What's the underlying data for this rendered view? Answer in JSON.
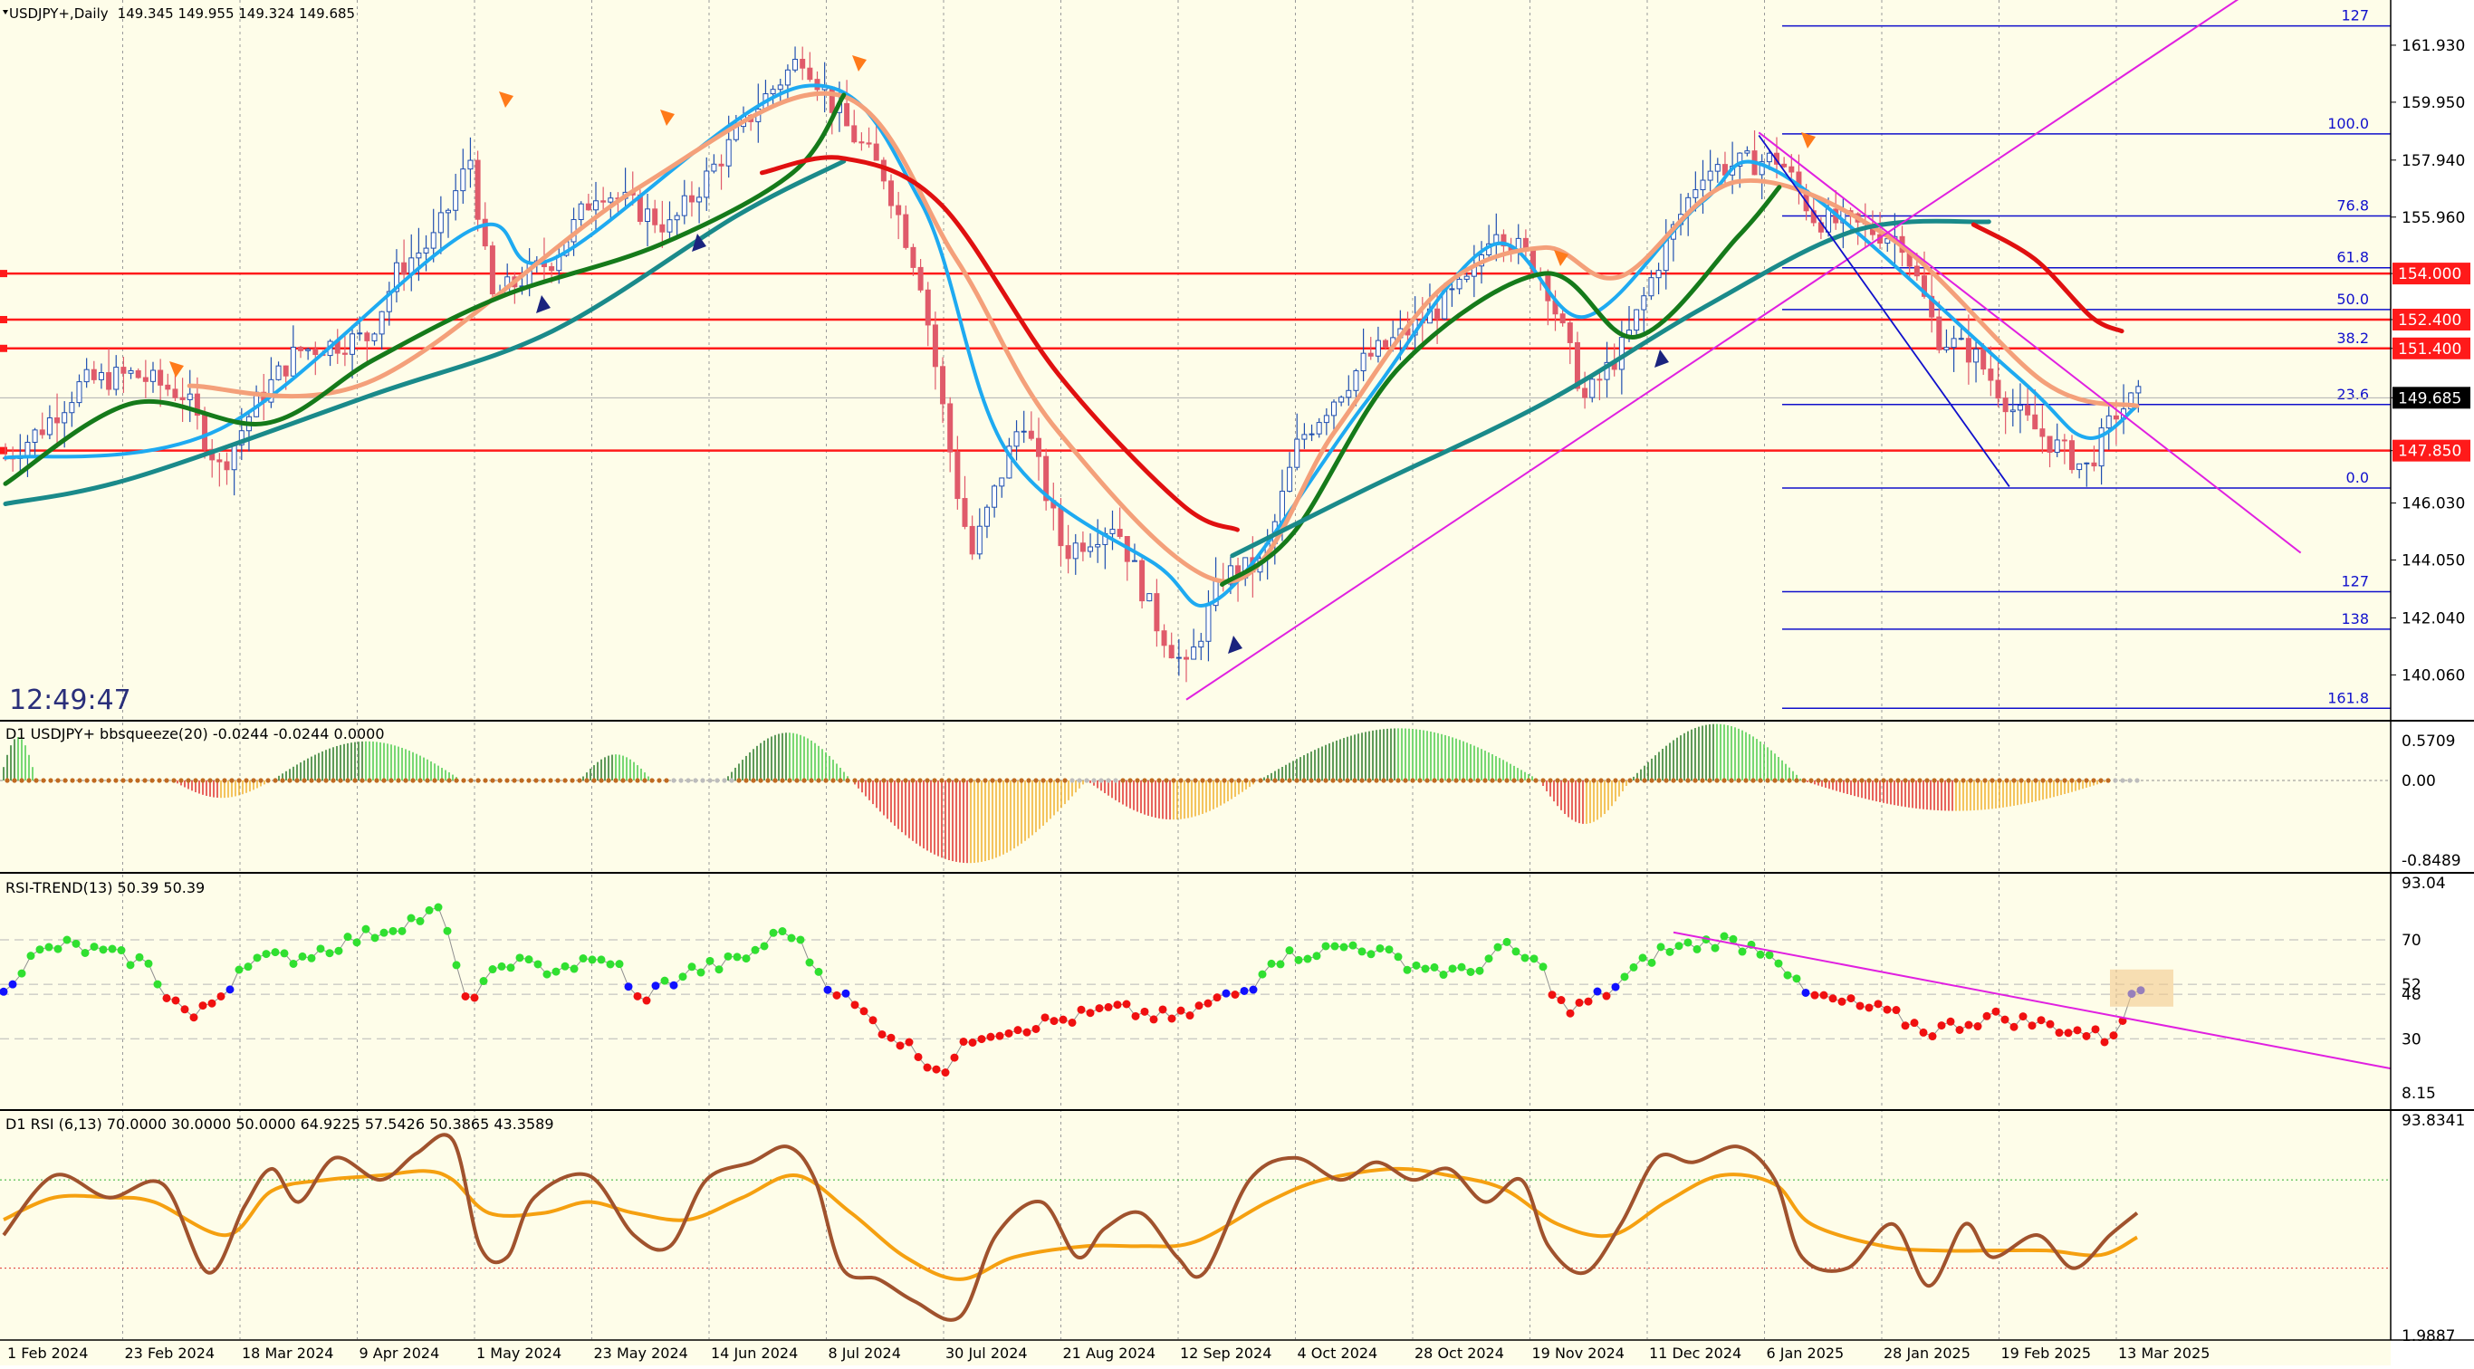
{
  "main": {
    "symbol_label": "USDJPY+,Daily",
    "ohlc_label": "149.345 149.955 149.324 149.685",
    "clock": "12:49:47",
    "price_ticks": [
      "161.930",
      "159.950",
      "157.940",
      "155.960",
      "154.000",
      "152.400",
      "151.400",
      "149.685",
      "147.850",
      "146.030",
      "144.050",
      "142.040",
      "140.060"
    ],
    "level_badges": [
      {
        "label": "154.000",
        "value": 154.0
      },
      {
        "label": "152.400",
        "value": 152.4
      },
      {
        "label": "151.400",
        "value": 151.4
      },
      {
        "label": "147.850",
        "value": 147.85
      }
    ],
    "current_price": {
      "label": "149.685",
      "value": 149.685
    },
    "fib_levels": [
      {
        "label": "127",
        "value": 162.6
      },
      {
        "label": "100.0",
        "value": 158.85
      },
      {
        "label": "76.8",
        "value": 156.0
      },
      {
        "label": "61.8",
        "value": 154.2
      },
      {
        "label": "50.0",
        "value": 152.75
      },
      {
        "label": "38.2",
        "value": 151.4
      },
      {
        "label": "23.6",
        "value": 149.45
      },
      {
        "label": "0.0",
        "value": 146.55
      },
      {
        "label": "127",
        "value": 142.95
      },
      {
        "label": "138",
        "value": 141.65
      },
      {
        "label": "161.8",
        "value": 138.9
      }
    ]
  },
  "squeeze": {
    "title": "D1 USDJPY+ bbsqueeze(20) -0.0244 -0.0244 0.0000",
    "ticks": [
      "0.5709",
      "0.00",
      "-0.8489"
    ]
  },
  "rsitrend": {
    "title": "RSI-TREND(13) 50.39 50.39",
    "ticks": [
      "93.04",
      "70",
      "52",
      "48",
      "30",
      "8.15"
    ]
  },
  "rsi": {
    "title": "D1 RSI  (6,13) 70.0000 30.0000 50.0000 64.9225 57.5426 50.3865 43.3589",
    "ticks": [
      "93.8341",
      "1.9887"
    ]
  },
  "x_labels": [
    "1 Feb 2024",
    "23 Feb 2024",
    "18 Mar 2024",
    "9 Apr 2024",
    "1 May 2024",
    "23 May 2024",
    "14 Jun 2024",
    "8 Jul 2024",
    "30 Jul 2024",
    "21 Aug 2024",
    "12 Sep 2024",
    "4 Oct 2024",
    "28 Oct 2024",
    "19 Nov 2024",
    "11 Dec 2024",
    "6 Jan 2025",
    "28 Jan 2025",
    "19 Feb 2025",
    "13 Mar 2025"
  ],
  "colors": {
    "background": "#fefde9",
    "bull": "#1f4fb0",
    "bear": "#e05a6a",
    "ema_fast": "#1eaaf1",
    "ema_mid": "#f4a07a",
    "sma_green": "#157a1a",
    "sma_teal": "#1a8a8a",
    "sma_red": "#e01010",
    "channel": "#e020e0",
    "fib": "#1010cc",
    "level": "#ff1a1a",
    "rsi_fast": "#a0522d",
    "rsi_slow": "#f5a010"
  },
  "chart_data": {
    "type": "candlestick",
    "symbol": "USDJPY+",
    "timeframe": "Daily",
    "last_bar": {
      "open": 149.345,
      "high": 149.955,
      "low": 149.324,
      "close": 149.685
    },
    "y_range": [
      138.5,
      163.5
    ],
    "x_range": [
      "2024-01-29",
      "2025-03-21"
    ],
    "close_path": [
      {
        "date": "2024-01-29",
        "close": 147.6
      },
      {
        "date": "2024-02-05",
        "close": 148.6
      },
      {
        "date": "2024-02-13",
        "close": 150.2
      },
      {
        "date": "2024-02-23",
        "close": 150.5
      },
      {
        "date": "2024-03-04",
        "close": 149.8
      },
      {
        "date": "2024-03-11",
        "close": 147.2
      },
      {
        "date": "2024-03-18",
        "close": 149.5
      },
      {
        "date": "2024-03-26",
        "close": 151.3
      },
      {
        "date": "2024-04-09",
        "close": 151.8
      },
      {
        "date": "2024-04-15",
        "close": 154.2
      },
      {
        "date": "2024-04-22",
        "close": 155.2
      },
      {
        "date": "2024-04-29",
        "close": 158.0
      },
      {
        "date": "2024-05-03",
        "close": 153.1
      },
      {
        "date": "2024-05-15",
        "close": 154.5
      },
      {
        "date": "2024-05-24",
        "close": 157.0
      },
      {
        "date": "2024-06-07",
        "close": 155.6
      },
      {
        "date": "2024-06-14",
        "close": 157.3
      },
      {
        "date": "2024-06-24",
        "close": 159.8
      },
      {
        "date": "2024-07-03",
        "close": 161.6
      },
      {
        "date": "2024-07-11",
        "close": 159.2
      },
      {
        "date": "2024-07-19",
        "close": 157.4
      },
      {
        "date": "2024-07-26",
        "close": 153.8
      },
      {
        "date": "2024-08-02",
        "close": 146.6
      },
      {
        "date": "2024-08-05",
        "close": 144.2
      },
      {
        "date": "2024-08-15",
        "close": 149.1
      },
      {
        "date": "2024-08-23",
        "close": 144.3
      },
      {
        "date": "2024-09-02",
        "close": 145.4
      },
      {
        "date": "2024-09-10",
        "close": 141.9
      },
      {
        "date": "2024-09-16",
        "close": 140.2
      },
      {
        "date": "2024-09-23",
        "close": 143.5
      },
      {
        "date": "2024-10-01",
        "close": 143.9
      },
      {
        "date": "2024-10-08",
        "close": 148.2
      },
      {
        "date": "2024-10-21",
        "close": 151.0
      },
      {
        "date": "2024-10-31",
        "close": 152.2
      },
      {
        "date": "2024-11-11",
        "close": 153.8
      },
      {
        "date": "2024-11-15",
        "close": 155.8
      },
      {
        "date": "2024-11-25",
        "close": 153.9
      },
      {
        "date": "2024-12-03",
        "close": 149.6
      },
      {
        "date": "2024-12-11",
        "close": 151.6
      },
      {
        "date": "2024-12-18",
        "close": 154.7
      },
      {
        "date": "2024-12-26",
        "close": 157.6
      },
      {
        "date": "2025-01-10",
        "close": 158.0
      },
      {
        "date": "2025-01-17",
        "close": 155.9
      },
      {
        "date": "2025-01-24",
        "close": 155.7
      },
      {
        "date": "2025-02-03",
        "close": 155.2
      },
      {
        "date": "2025-02-10",
        "close": 151.8
      },
      {
        "date": "2025-02-17",
        "close": 151.2
      },
      {
        "date": "2025-02-25",
        "close": 149.2
      },
      {
        "date": "2025-03-03",
        "close": 148.3
      },
      {
        "date": "2025-03-11",
        "close": 147.2
      },
      {
        "date": "2025-03-17",
        "close": 149.2
      },
      {
        "date": "2025-03-21",
        "close": 149.685
      }
    ],
    "moving_averages": [
      {
        "name": "EMA fast",
        "color": "#1eaaf1",
        "points": [
          [
            "2024-01-29",
            147.6
          ],
          [
            "2024-03-11",
            148.6
          ],
          [
            "2024-04-29",
            155.5
          ],
          [
            "2024-05-15",
            154.5
          ],
          [
            "2024-07-03",
            160.5
          ],
          [
            "2024-07-26",
            156.5
          ],
          [
            "2024-08-12",
            147.8
          ],
          [
            "2024-09-10",
            143.9
          ],
          [
            "2024-09-23",
            142.8
          ],
          [
            "2024-10-21",
            149.5
          ],
          [
            "2024-11-15",
            155.0
          ],
          [
            "2024-12-03",
            152.5
          ],
          [
            "2024-12-26",
            156.5
          ],
          [
            "2025-01-10",
            157.5
          ],
          [
            "2025-02-25",
            150.5
          ],
          [
            "2025-03-11",
            148.3
          ],
          [
            "2025-03-21",
            149.4
          ]
        ]
      },
      {
        "name": "EMA mid",
        "color": "#f4a07a",
        "points": [
          [
            "2024-03-05",
            150.1
          ],
          [
            "2024-04-10",
            150.3
          ],
          [
            "2024-06-01",
            157.0
          ],
          [
            "2024-07-10",
            160.2
          ],
          [
            "2024-08-02",
            154.5
          ],
          [
            "2024-08-22",
            148.5
          ],
          [
            "2024-09-24",
            143.3
          ],
          [
            "2024-10-15",
            148.5
          ],
          [
            "2024-11-05",
            153.5
          ],
          [
            "2024-11-25",
            154.9
          ],
          [
            "2024-12-10",
            153.9
          ],
          [
            "2025-01-02",
            157.2
          ],
          [
            "2025-02-01",
            155.2
          ],
          [
            "2025-03-03",
            150.2
          ],
          [
            "2025-03-21",
            149.4
          ]
        ]
      },
      {
        "name": "SMA green",
        "color": "#157a1a",
        "points": [
          [
            "2024-01-29",
            146.7
          ],
          [
            "2024-02-23",
            149.5
          ],
          [
            "2024-03-20",
            148.8
          ],
          [
            "2024-04-10",
            151.0
          ],
          [
            "2024-05-05",
            153.2
          ],
          [
            "2024-06-05",
            155.0
          ],
          [
            "2024-07-01",
            157.5
          ],
          [
            "2024-07-11",
            160.2
          ]
        ]
      },
      {
        "name": "SMA green",
        "color": "#157a1a",
        "points": [
          [
            "2024-09-23",
            143.2
          ],
          [
            "2024-10-07",
            145.0
          ],
          [
            "2024-10-28",
            150.8
          ],
          [
            "2024-11-25",
            154.0
          ],
          [
            "2024-12-13",
            151.8
          ],
          [
            "2025-01-02",
            155.3
          ],
          [
            "2025-01-10",
            157.0
          ]
        ]
      },
      {
        "name": "SMA teal",
        "color": "#1a8a8a",
        "points": [
          [
            "2024-01-29",
            146.0
          ],
          [
            "2024-02-23",
            146.9
          ],
          [
            "2024-04-10",
            149.8
          ],
          [
            "2024-05-15",
            152.0
          ],
          [
            "2024-06-20",
            156.0
          ],
          [
            "2024-07-11",
            157.9
          ]
        ]
      },
      {
        "name": "SMA teal",
        "color": "#1a8a8a",
        "points": [
          [
            "2024-09-25",
            144.2
          ],
          [
            "2024-10-21",
            146.5
          ],
          [
            "2024-11-25",
            149.5
          ],
          [
            "2024-12-26",
            152.8
          ],
          [
            "2025-01-25",
            155.5
          ],
          [
            "2025-02-20",
            155.8
          ]
        ]
      },
      {
        "name": "SMA red",
        "color": "#e01010",
        "points": [
          [
            "2024-06-25",
            157.5
          ],
          [
            "2024-07-11",
            158.0
          ],
          [
            "2024-07-30",
            156.4
          ],
          [
            "2024-08-22",
            150.5
          ],
          [
            "2024-09-15",
            146.0
          ],
          [
            "2024-09-26",
            145.1
          ]
        ]
      },
      {
        "name": "SMA red",
        "color": "#e01010",
        "points": [
          [
            "2025-02-17",
            155.7
          ],
          [
            "2025-03-01",
            154.5
          ],
          [
            "2025-03-12",
            152.5
          ],
          [
            "2025-03-18",
            152.0
          ]
        ]
      }
    ],
    "horizontal_levels": [
      154.0,
      152.4,
      151.4,
      147.85
    ],
    "channel_lines": [
      {
        "from": [
          "2024-09-16",
          139.2
        ],
        "to": [
          "2025-04-18",
          164.5
        ]
      },
      {
        "from": [
          "2025-01-06",
          158.9
        ],
        "to": [
          "2025-04-22",
          144.3
        ]
      }
    ],
    "trend_line": {
      "from": [
        "2025-01-06",
        158.8
      ],
      "to": [
        "2025-02-24",
        146.6
      ]
    },
    "fibonacci": {
      "0.0": 146.55,
      "23.6": 149.45,
      "38.2": 151.4,
      "50.0": 152.75,
      "61.8": 154.2,
      "76.8": 156.0,
      "100.0": 158.85,
      "127": 162.6,
      "138": 141.65,
      "161.8": 138.9
    }
  }
}
